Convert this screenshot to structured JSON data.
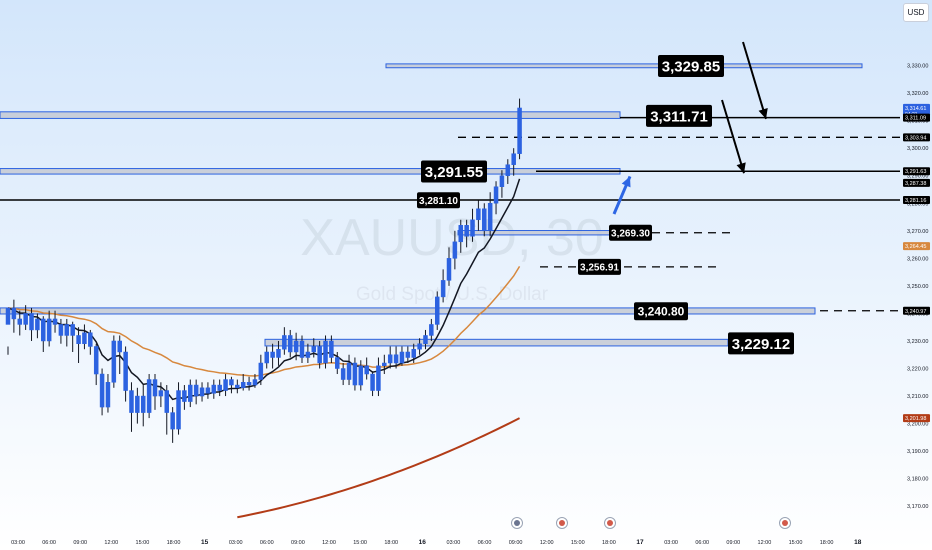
{
  "currency_button": "USD",
  "watermark": {
    "symbol": "XAUUSD, 30",
    "name": "Gold Spot / U.S. Dollar"
  },
  "colors": {
    "bg_top": "#d3e6fb",
    "bg_bottom": "#ffffff",
    "candle": "#2c62e0",
    "wick": "#131722",
    "ema_short": "#131722",
    "ema_mid": "#d7883e",
    "ema_long": "#b23c17",
    "zone_fill": "#c4c9d3",
    "zone_stroke": "#2c62e0",
    "arrow": "#2d66e4",
    "label_bg": "#000000",
    "label_text": "#ffffff"
  },
  "chart_data": {
    "type": "candlestick",
    "symbol": "XAUUSD",
    "timeframe": "30",
    "ylim": [
      3165,
      3340
    ],
    "price_ticks": [
      3170,
      3180,
      3190,
      3200,
      3210,
      3220,
      3230,
      3240,
      3250,
      3260,
      3270,
      3280,
      3290,
      3300,
      3310,
      3320,
      3330
    ],
    "time_labels": [
      "03:00",
      "06:00",
      "09:00",
      "12:00",
      "15:00",
      "18:00",
      "15",
      "03:00",
      "06:00",
      "09:00",
      "12:00",
      "15:00",
      "18:00",
      "16",
      "03:00",
      "06:00",
      "09:00",
      "12:00",
      "15:00",
      "18:00",
      "17",
      "03:00",
      "06:00",
      "09:00",
      "12:00",
      "15:00",
      "18:00",
      "18"
    ],
    "price_axis_tags": [
      {
        "text": "3,314.61",
        "sub": "04:21",
        "price": 3314.61,
        "color": "#2c62e0"
      },
      {
        "text": "3,311.09",
        "price": 3311.09,
        "color": "#000000"
      },
      {
        "text": "3,303.94",
        "price": 3303.94,
        "color": "#000000"
      },
      {
        "text": "3,291.63",
        "price": 3291.63,
        "color": "#000000"
      },
      {
        "text": "3,287.38",
        "price": 3287.38,
        "color": "#000000"
      },
      {
        "text": "3,281.16",
        "price": 3281.16,
        "color": "#000000"
      },
      {
        "text": "3,264.45",
        "price": 3264.45,
        "color": "#d7883e"
      },
      {
        "text": "3,240.97",
        "price": 3240.97,
        "color": "#000000"
      },
      {
        "text": "3,201.98",
        "price": 3201.98,
        "color": "#b23c17"
      }
    ],
    "level_labels": [
      {
        "text": "3,329.85",
        "price": 3329.85,
        "size": "large"
      },
      {
        "text": "3,311.71",
        "price": 3311.71,
        "size": "large"
      },
      {
        "text": "3,291.55",
        "price": 3291.55,
        "size": "large"
      },
      {
        "text": "3,281.10",
        "price": 3281.1,
        "size": "small"
      },
      {
        "text": "3,269.30",
        "price": 3269.3,
        "size": "small"
      },
      {
        "text": "3,256.91",
        "price": 3256.91,
        "size": "small"
      },
      {
        "text": "3,240.80",
        "price": 3240.8,
        "size": "medium"
      },
      {
        "text": "3,229.12",
        "price": 3229.12,
        "size": "large"
      }
    ],
    "solid_levels": [
      3311.09,
      3291.63,
      3281.16
    ],
    "dashed_levels": [
      3303.94,
      3269.3,
      3256.91,
      3240.97
    ],
    "zones": [
      [
        3329.2,
        3330.6
      ],
      [
        3310.8,
        3313.2
      ],
      [
        3290.6,
        3292.6
      ],
      [
        3239.8,
        3242.0
      ],
      [
        3228.2,
        3230.6
      ],
      [
        3268.5,
        3270.1
      ]
    ],
    "candles": [
      [
        3236,
        3242,
        3228,
        3225
      ],
      [
        3242,
        3238,
        3245,
        3233
      ],
      [
        3238,
        3236,
        3241,
        3232
      ],
      [
        3236,
        3240,
        3243,
        3234
      ],
      [
        3240,
        3234,
        3242,
        3230
      ],
      [
        3234,
        3238,
        3240,
        3231
      ],
      [
        3238,
        3230,
        3239,
        3226
      ],
      [
        3230,
        3238,
        3241,
        3228
      ],
      [
        3238,
        3236,
        3241,
        3233
      ],
      [
        3236,
        3232,
        3238,
        3229
      ],
      [
        3232,
        3236,
        3238,
        3228
      ],
      [
        3236,
        3232,
        3237,
        3226
      ],
      [
        3232,
        3229,
        3235,
        3222
      ],
      [
        3229,
        3233,
        3236,
        3227
      ],
      [
        3233,
        3228,
        3234,
        3225
      ],
      [
        3228,
        3218,
        3229,
        3214
      ],
      [
        3218,
        3206,
        3220,
        3203
      ],
      [
        3206,
        3215,
        3218,
        3204
      ],
      [
        3215,
        3230,
        3232,
        3213
      ],
      [
        3230,
        3226,
        3232,
        3218
      ],
      [
        3226,
        3212,
        3228,
        3208
      ],
      [
        3212,
        3204,
        3215,
        3197
      ],
      [
        3204,
        3210,
        3213,
        3200
      ],
      [
        3210,
        3204,
        3214,
        3199
      ],
      [
        3204,
        3216,
        3218,
        3202
      ],
      [
        3216,
        3210,
        3218,
        3205
      ],
      [
        3210,
        3212,
        3215,
        3206
      ],
      [
        3212,
        3204,
        3214,
        3196
      ],
      [
        3204,
        3198,
        3206,
        3193
      ],
      [
        3198,
        3212,
        3215,
        3196
      ],
      [
        3212,
        3208,
        3214,
        3205
      ],
      [
        3208,
        3214,
        3216,
        3206
      ],
      [
        3214,
        3210,
        3216,
        3207
      ],
      [
        3210,
        3213,
        3215,
        3208
      ],
      [
        3213,
        3211,
        3215,
        3209
      ],
      [
        3211,
        3214,
        3216,
        3209
      ],
      [
        3214,
        3212,
        3216,
        3210
      ],
      [
        3212,
        3216,
        3218,
        3210
      ],
      [
        3216,
        3214,
        3217,
        3211
      ],
      [
        3214,
        3213,
        3216,
        3211
      ],
      [
        3213,
        3215,
        3218,
        3212
      ],
      [
        3215,
        3214,
        3217,
        3212
      ],
      [
        3214,
        3216,
        3218,
        3213
      ],
      [
        3216,
        3222,
        3225,
        3214
      ],
      [
        3222,
        3226,
        3228,
        3220
      ],
      [
        3226,
        3224,
        3229,
        3220
      ],
      [
        3224,
        3227,
        3230,
        3221
      ],
      [
        3227,
        3232,
        3235,
        3225
      ],
      [
        3232,
        3226,
        3234,
        3224
      ],
      [
        3226,
        3230,
        3233,
        3223
      ],
      [
        3230,
        3224,
        3232,
        3222
      ],
      [
        3224,
        3226,
        3229,
        3222
      ],
      [
        3226,
        3228,
        3231,
        3224
      ],
      [
        3228,
        3222,
        3230,
        3220
      ],
      [
        3222,
        3230,
        3232,
        3220
      ],
      [
        3230,
        3224,
        3232,
        3222
      ],
      [
        3224,
        3220,
        3226,
        3218
      ],
      [
        3220,
        3216,
        3222,
        3214
      ],
      [
        3216,
        3222,
        3225,
        3214
      ],
      [
        3222,
        3214,
        3224,
        3212
      ],
      [
        3214,
        3221,
        3223,
        3212
      ],
      [
        3221,
        3218,
        3224,
        3216
      ],
      [
        3218,
        3212,
        3219,
        3210
      ],
      [
        3212,
        3221,
        3224,
        3210
      ],
      [
        3221,
        3222,
        3225,
        3218
      ],
      [
        3222,
        3225,
        3228,
        3220
      ],
      [
        3225,
        3222,
        3228,
        3220
      ],
      [
        3222,
        3226,
        3228,
        3221
      ],
      [
        3226,
        3224,
        3228,
        3222
      ],
      [
        3224,
        3227,
        3229,
        3222
      ],
      [
        3227,
        3229,
        3231,
        3225
      ],
      [
        3229,
        3232,
        3234,
        3227
      ],
      [
        3232,
        3236,
        3238,
        3230
      ],
      [
        3236,
        3246,
        3248,
        3234
      ],
      [
        3246,
        3252,
        3256,
        3244
      ],
      [
        3252,
        3260,
        3264,
        3250
      ],
      [
        3260,
        3266,
        3270,
        3256
      ],
      [
        3266,
        3272,
        3274,
        3262
      ],
      [
        3272,
        3268,
        3274,
        3264
      ],
      [
        3268,
        3274,
        3278,
        3266
      ],
      [
        3274,
        3278,
        3281,
        3270
      ],
      [
        3278,
        3270,
        3280,
        3268
      ],
      [
        3270,
        3280,
        3284,
        3268
      ],
      [
        3280,
        3286,
        3288,
        3276
      ],
      [
        3286,
        3290,
        3292,
        3282
      ],
      [
        3290,
        3294,
        3296,
        3287
      ],
      [
        3294,
        3298,
        3300,
        3290
      ],
      [
        3298,
        3314.6,
        3318,
        3296
      ]
    ]
  }
}
